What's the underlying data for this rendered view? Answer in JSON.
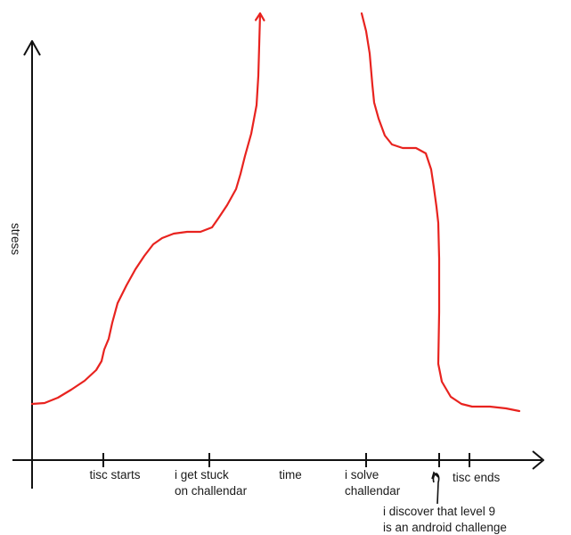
{
  "chart_data": {
    "type": "line",
    "title": "",
    "xlabel": "time",
    "ylabel": "stress",
    "grid": false,
    "legend": "none",
    "x_ticks": [
      {
        "id": "tisc-starts",
        "lines": [
          "tisc starts"
        ]
      },
      {
        "id": "stuck",
        "lines": [
          "i get stuck",
          "on challendar"
        ]
      },
      {
        "id": "solve",
        "lines": [
          "i solve",
          "challendar"
        ]
      },
      {
        "id": "android",
        "lines": [
          "i discover that level 9",
          "is an android challenge"
        ]
      },
      {
        "id": "tisc-ends",
        "lines": [
          "tisc ends"
        ]
      }
    ],
    "series": [
      {
        "color": "#e8231f",
        "segments": [
          {
            "end_arrow": true,
            "points": [
              [
                36,
                453
              ],
              [
                50,
                452
              ],
              [
                65,
                446
              ],
              [
                80,
                437
              ],
              [
                95,
                427
              ],
              [
                108,
                415
              ],
              [
                114,
                405
              ],
              [
                117,
                392
              ],
              [
                122,
                380
              ],
              [
                126,
                362
              ],
              [
                132,
                340
              ],
              [
                142,
                320
              ],
              [
                152,
                302
              ],
              [
                162,
                287
              ],
              [
                172,
                274
              ],
              [
                182,
                267
              ],
              [
                195,
                262
              ],
              [
                210,
                260
              ],
              [
                225,
                260
              ],
              [
                238,
                255
              ],
              [
                245,
                245
              ],
              [
                255,
                230
              ],
              [
                265,
                212
              ],
              [
                270,
                195
              ],
              [
                275,
                175
              ],
              [
                282,
                150
              ],
              [
                288,
                118
              ],
              [
                290,
                85
              ],
              [
                291,
                50
              ],
              [
                292,
                15
              ]
            ]
          },
          {
            "end_arrow": false,
            "points": [
              [
                406,
                15
              ],
              [
                411,
                35
              ],
              [
                415,
                60
              ],
              [
                418,
                95
              ],
              [
                420,
                115
              ],
              [
                425,
                133
              ],
              [
                432,
                152
              ],
              [
                440,
                162
              ],
              [
                452,
                166
              ],
              [
                467,
                166
              ],
              [
                478,
                172
              ],
              [
                484,
                190
              ],
              [
                487,
                210
              ],
              [
                490,
                232
              ],
              [
                492,
                250
              ],
              [
                493,
                290
              ],
              [
                493,
                350
              ],
              [
                492,
                408
              ],
              [
                496,
                428
              ],
              [
                506,
                445
              ],
              [
                518,
                453
              ],
              [
                530,
                456
              ],
              [
                550,
                456
              ],
              [
                568,
                458
              ],
              [
                583,
                461
              ]
            ]
          }
        ]
      }
    ]
  }
}
